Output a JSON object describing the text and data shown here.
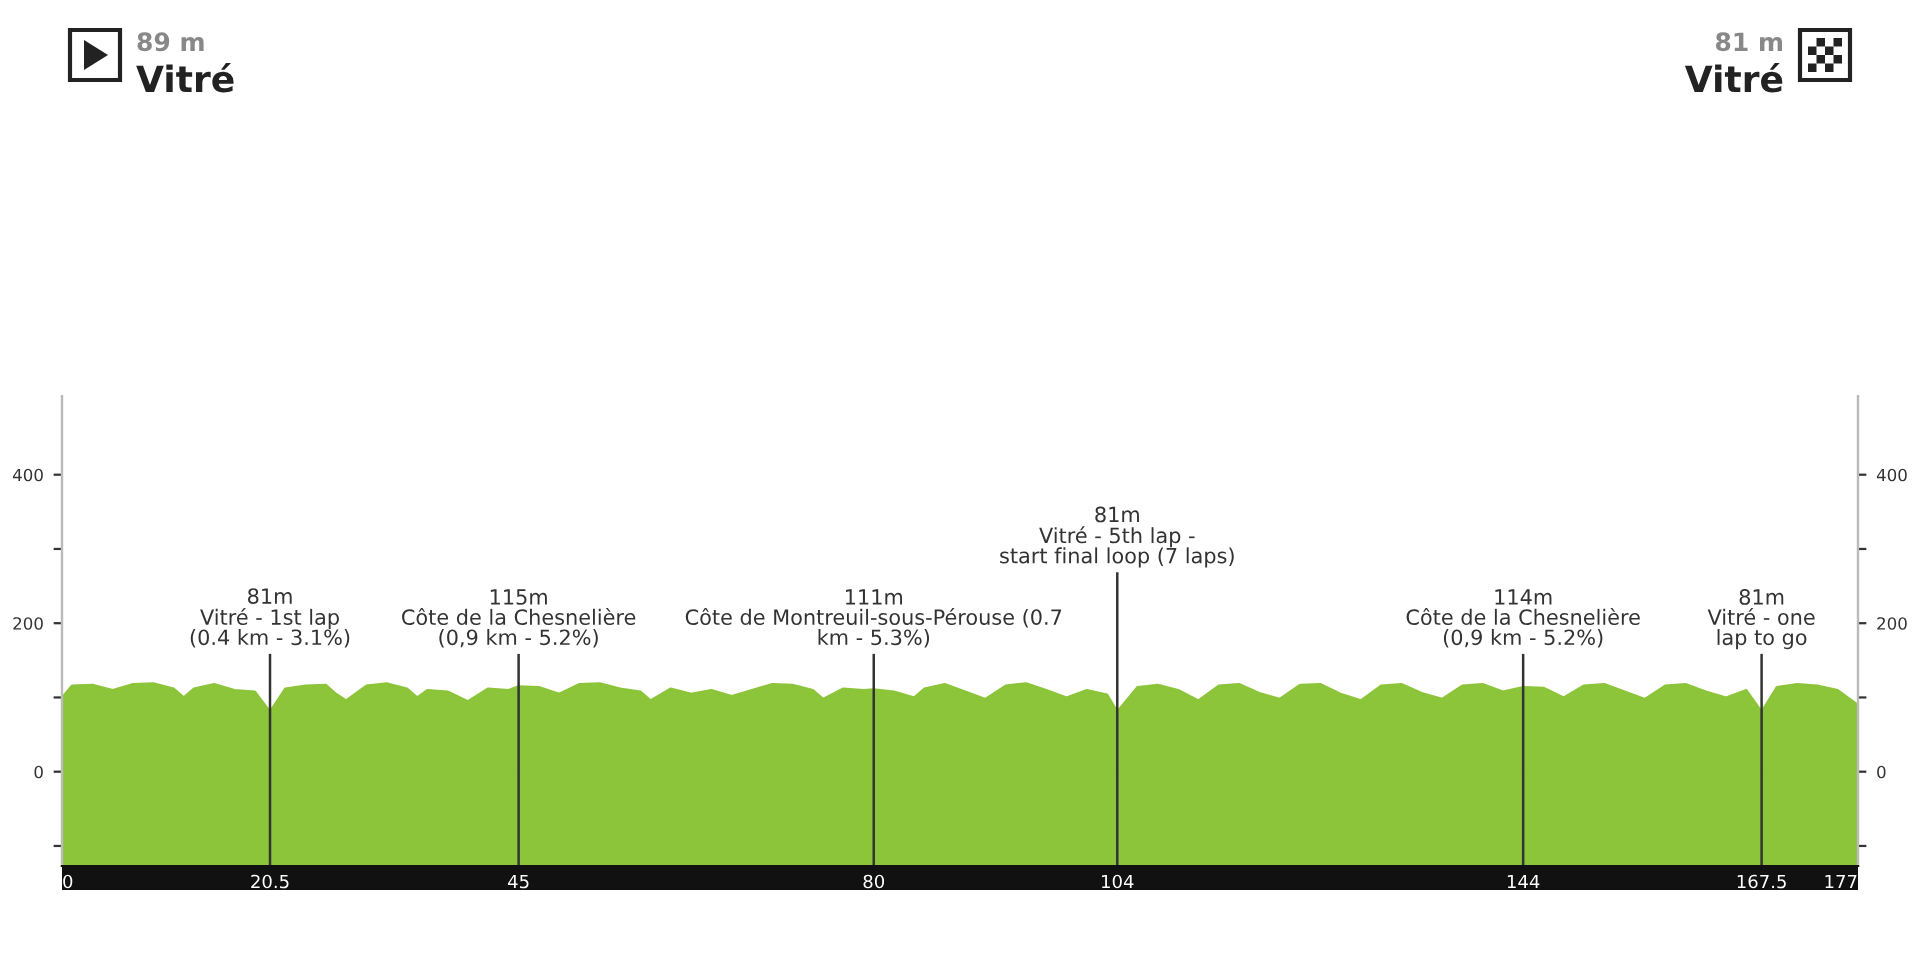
{
  "chart_data": {
    "type": "area",
    "annotations": [
      "89 m",
      "Vitré",
      "81 m",
      "Vitré"
    ],
    "series": [
      {
        "color": "#8cc43a",
        "x": [
          0,
          1,
          3,
          5,
          7,
          9,
          11,
          12,
          13,
          15,
          17,
          19,
          20.5,
          22,
          24,
          26,
          27,
          28,
          30,
          32,
          34,
          35,
          36,
          38,
          40,
          42,
          44,
          45,
          47,
          49,
          51,
          53,
          55,
          57,
          58,
          60,
          62,
          64,
          66,
          68,
          70,
          72,
          74,
          75,
          77,
          79,
          80,
          82,
          84,
          85,
          87,
          89,
          91,
          93,
          95,
          97,
          99,
          101,
          103,
          104,
          106,
          108,
          110,
          112,
          114,
          116,
          118,
          120,
          122,
          124,
          126,
          128,
          130,
          132,
          134,
          136,
          138,
          140,
          142,
          144,
          146,
          148,
          150,
          152,
          154,
          156,
          158,
          160,
          162,
          164,
          166,
          167.5,
          169,
          171,
          173,
          175,
          177
        ],
        "values": [
          100,
          116,
          117,
          110,
          118,
          119,
          112,
          100,
          112,
          118,
          110,
          108,
          81,
          112,
          116,
          117,
          105,
          96,
          116,
          119,
          112,
          100,
          110,
          108,
          95,
          112,
          110,
          115,
          114,
          105,
          118,
          119,
          112,
          108,
          96,
          112,
          105,
          110,
          102,
          110,
          118,
          117,
          110,
          98,
          112,
          110,
          111,
          108,
          100,
          112,
          118,
          108,
          98,
          116,
          119,
          110,
          100,
          110,
          104,
          81,
          114,
          117,
          110,
          96,
          116,
          118,
          106,
          98,
          117,
          118,
          105,
          96,
          116,
          118,
          106,
          98,
          116,
          118,
          108,
          114,
          113,
          100,
          116,
          118,
          108,
          98,
          116,
          118,
          108,
          100,
          110,
          81,
          114,
          118,
          116,
          110,
          90
        ]
      }
    ],
    "xlim": [
      0,
      177
    ],
    "xticks": [
      0,
      20.5,
      45,
      80,
      104,
      144,
      167.5,
      177
    ],
    "ylim": [
      -127,
      506
    ],
    "yticks": [
      {
        "value": -100,
        "label": null
      },
      0,
      {
        "value": 100,
        "label": null
      },
      200,
      {
        "value": 300,
        "label": null
      },
      400
    ],
    "y2lim": [
      -127,
      506
    ],
    "y2ticks": [
      {
        "value": -100,
        "label": null
      },
      0,
      {
        "value": 100,
        "label": null
      },
      200,
      {
        "value": 300,
        "label": null
      },
      400
    ],
    "ref_lines": [
      {
        "axis": "x",
        "value": 20.5,
        "label": "81m\nVitré - 1st lap\n(0.4 km - 3.1%)",
        "color": "#333333"
      },
      {
        "axis": "x",
        "value": 45,
        "label": "115m\nCôte de la Chesnelière\n(0,9 km - 5.2%)",
        "color": "#333333"
      },
      {
        "axis": "x",
        "value": 80,
        "label": "111m\nCôte de Montreuil-sous-Pérouse (0.7\nkm - 5.3%)",
        "color": "#333333"
      },
      {
        "axis": "x",
        "value": 104,
        "label": "81m\nVitré - 5th lap -\nstart final loop (7 laps)",
        "color": "#333333"
      },
      {
        "axis": "x",
        "value": 144,
        "label": "114m\nCôte de la Chesnelière\n(0,9 km - 5.2%)",
        "color": "#333333"
      },
      {
        "axis": "x",
        "value": 167.5,
        "label": "81m\nVitré - one\nlap to go",
        "color": "#333333"
      }
    ],
    "grid": false,
    "legend": false
  }
}
